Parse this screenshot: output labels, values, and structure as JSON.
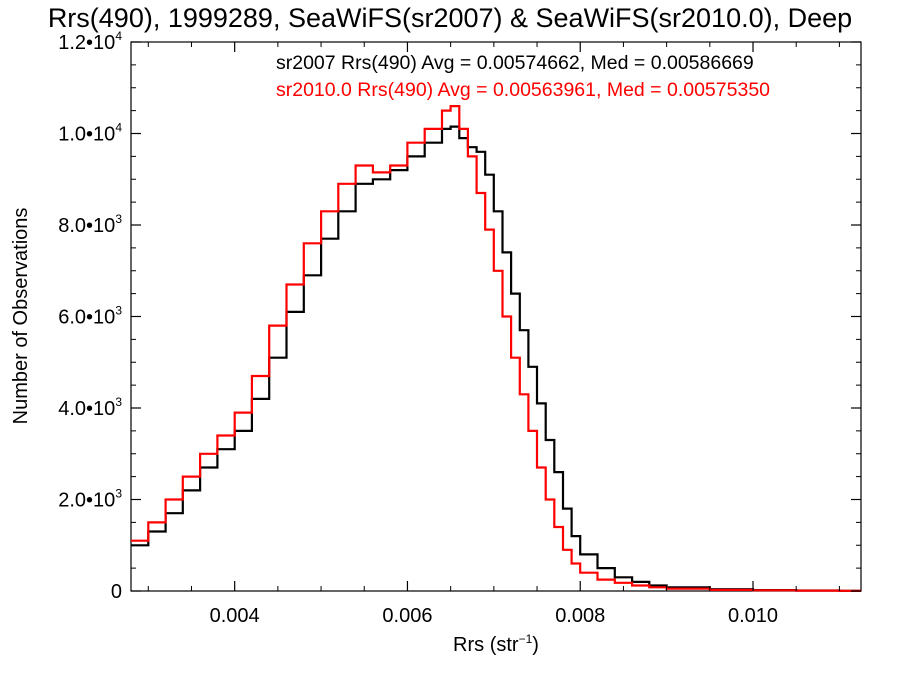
{
  "chart_data": {
    "type": "line",
    "title": "Rrs(490), 1999289, SeaWiFS(sr2007) & SeaWiFS(sr2010.0), Deep",
    "xlabel": "Rrs (str",
    "xlabel_sup": "−1",
    "xlabel_suffix": ")",
    "ylabel": "Number of Observations",
    "xlim": [
      0.0028,
      0.01125
    ],
    "ylim": [
      0,
      12000
    ],
    "grid": false,
    "legend_placement": "top-right",
    "x_ticks": [
      {
        "value": 0.004,
        "label": "0.004"
      },
      {
        "value": 0.006,
        "label": "0.006"
      },
      {
        "value": 0.008,
        "label": "0.008"
      },
      {
        "value": 0.01,
        "label": "0.010"
      }
    ],
    "y_ticks": [
      {
        "value": 0,
        "mant": "0",
        "exp": ""
      },
      {
        "value": 2000,
        "mant": "2.0•10",
        "exp": "3"
      },
      {
        "value": 4000,
        "mant": "4.0•10",
        "exp": "3"
      },
      {
        "value": 6000,
        "mant": "6.0•10",
        "exp": "3"
      },
      {
        "value": 8000,
        "mant": "8.0•10",
        "exp": "3"
      },
      {
        "value": 10000,
        "mant": "1.0•10",
        "exp": "4"
      },
      {
        "value": 12000,
        "mant": "1.2•10",
        "exp": "4"
      }
    ],
    "series": [
      {
        "name": "sr2007 Rrs(490) Avg = 0.00574662, Med = 0.00586669",
        "color": "#000000",
        "x": [
          0.0028,
          0.003,
          0.0032,
          0.0034,
          0.0036,
          0.0038,
          0.004,
          0.0042,
          0.0044,
          0.0046,
          0.0048,
          0.005,
          0.0052,
          0.0054,
          0.0056,
          0.0058,
          0.006,
          0.0062,
          0.0064,
          0.0065,
          0.0066,
          0.0067,
          0.0068,
          0.0069,
          0.007,
          0.0071,
          0.0072,
          0.0073,
          0.0074,
          0.0075,
          0.0076,
          0.0077,
          0.0078,
          0.0079,
          0.008,
          0.0082,
          0.0084,
          0.0086,
          0.0088,
          0.009,
          0.0095,
          0.01,
          0.0105,
          0.011,
          0.01125
        ],
        "y": [
          1000,
          1300,
          1700,
          2200,
          2700,
          3100,
          3500,
          4200,
          5100,
          6100,
          6900,
          7700,
          8300,
          8900,
          9000,
          9200,
          9500,
          9800,
          10100,
          10150,
          9900,
          9700,
          9600,
          9100,
          8300,
          7400,
          6500,
          5700,
          4900,
          4100,
          3300,
          2600,
          1800,
          1200,
          800,
          500,
          300,
          200,
          120,
          80,
          40,
          20,
          10,
          5,
          5
        ]
      },
      {
        "name": "sr2010.0 Rrs(490) Avg = 0.00563961, Med = 0.00575350",
        "color": "#ff0000",
        "x": [
          0.0028,
          0.003,
          0.0032,
          0.0034,
          0.0036,
          0.0038,
          0.004,
          0.0042,
          0.0044,
          0.0046,
          0.0048,
          0.005,
          0.0052,
          0.0054,
          0.0056,
          0.0058,
          0.006,
          0.0062,
          0.0064,
          0.0065,
          0.0066,
          0.0067,
          0.0068,
          0.0069,
          0.007,
          0.0071,
          0.0072,
          0.0073,
          0.0074,
          0.0075,
          0.0076,
          0.0077,
          0.0078,
          0.0079,
          0.008,
          0.0082,
          0.0084,
          0.0086,
          0.0088,
          0.009,
          0.0095,
          0.01,
          0.0105,
          0.011,
          0.01125
        ],
        "y": [
          1100,
          1500,
          2000,
          2500,
          3000,
          3400,
          3900,
          4700,
          5800,
          6700,
          7600,
          8300,
          8900,
          9300,
          9150,
          9300,
          9800,
          10100,
          10500,
          10600,
          10100,
          9500,
          8700,
          7900,
          7000,
          6000,
          5100,
          4300,
          3500,
          2700,
          2000,
          1400,
          900,
          600,
          400,
          250,
          180,
          120,
          80,
          50,
          25,
          15,
          8,
          4,
          4
        ]
      }
    ]
  }
}
